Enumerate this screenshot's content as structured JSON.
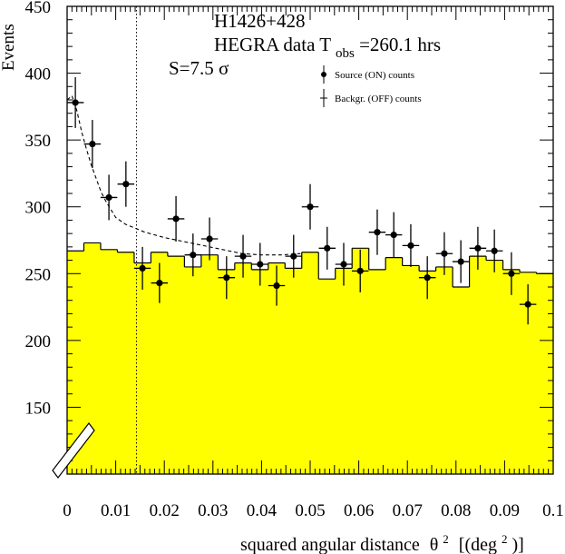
{
  "chart_data": {
    "type": "histogram",
    "ylabel": "Events",
    "xlabel_main": "squared angular distance",
    "xlabel_sym": "θ",
    "xlabel_sup": "2",
    "xlabel_unit_open": "[(deg",
    "xlabel_unit_sup": "2",
    "xlabel_unit_close": ")]",
    "xlim": [
      0,
      0.1
    ],
    "ylim": [
      100,
      450
    ],
    "y_axis_break": true,
    "xticks": [
      0,
      0.01,
      0.02,
      0.03,
      0.04,
      0.05,
      0.06,
      0.07,
      0.08,
      0.09,
      0.1
    ],
    "xtick_labels": [
      "0",
      "0.01",
      "0.02",
      "0.03",
      "0.04",
      "0.05",
      "0.06",
      "0.07",
      "0.08",
      "0.09",
      "0.1"
    ],
    "yticks": [
      150,
      200,
      250,
      300,
      350,
      400,
      450
    ],
    "ytick_labels": [
      "150",
      "200",
      "250",
      "300",
      "350",
      "400",
      "450"
    ],
    "cut_line_x": 0.01428,
    "annotations": {
      "source": "H1426+428",
      "data_prefix": "HEGRA data T",
      "data_sub": "obs",
      "data_suffix": "=260.1 hrs",
      "significance_prefix": "S=7.5 ",
      "significance_sym": "σ"
    },
    "legend": {
      "position": "top-right",
      "on_label": "Source (ON) counts",
      "off_label": "Backgr. (OFF) counts"
    },
    "colors": {
      "background_fill": "#ffff00",
      "line": "#000000"
    },
    "bin_width": 0.0034483,
    "background_off": [
      267,
      273,
      268,
      266,
      258,
      266,
      263,
      255,
      264,
      253,
      258,
      253,
      258,
      254,
      266,
      246,
      254,
      269,
      253,
      262,
      256,
      252,
      255,
      240,
      263,
      260,
      253,
      251,
      250
    ],
    "source_on": {
      "x": [
        0.0017,
        0.0052,
        0.0086,
        0.0121,
        0.0155,
        0.019,
        0.0224,
        0.0259,
        0.0293,
        0.0328,
        0.0362,
        0.0397,
        0.0431,
        0.0466,
        0.05,
        0.0535,
        0.0569,
        0.0603,
        0.0638,
        0.0672,
        0.0707,
        0.0741,
        0.0776,
        0.081,
        0.0845,
        0.0879,
        0.0914,
        0.0948
      ],
      "y": [
        378,
        347,
        307,
        317,
        254,
        243,
        291,
        264,
        276,
        247,
        263,
        257,
        241,
        263,
        300,
        269,
        257,
        252,
        281,
        279,
        271,
        247,
        265,
        259,
        269,
        267,
        250,
        227
      ],
      "yerr": [
        19,
        18,
        17,
        17,
        16,
        15,
        17,
        16,
        16,
        16,
        16,
        16,
        15,
        16,
        17,
        16,
        16,
        16,
        17,
        17,
        16,
        16,
        16,
        16,
        16,
        16,
        16,
        15
      ]
    },
    "expected_fit": {
      "x": [
        0.0,
        0.001,
        0.002,
        0.003,
        0.004,
        0.005,
        0.006,
        0.007,
        0.008,
        0.009,
        0.01,
        0.012,
        0.014,
        0.016,
        0.018,
        0.02,
        0.024,
        0.028,
        0.032,
        0.036,
        0.04,
        0.044,
        0.048
      ],
      "y": [
        380,
        383,
        372,
        356,
        343,
        331,
        321,
        311,
        304,
        298,
        292,
        287,
        284,
        281,
        279,
        277,
        274,
        271,
        268,
        265,
        264,
        264,
        265
      ]
    }
  }
}
